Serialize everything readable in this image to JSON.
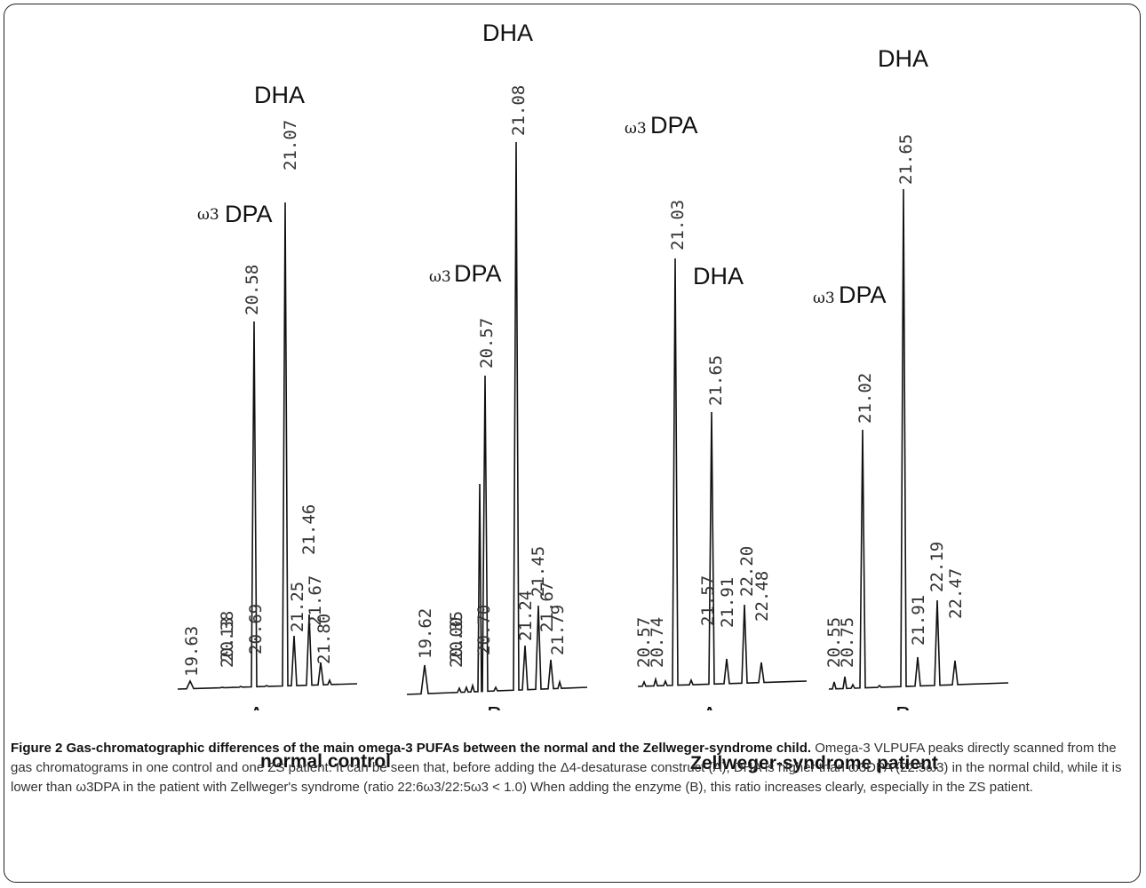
{
  "figure": {
    "panels": [
      {
        "label": "A",
        "peak_labels": [
          "ω3",
          "DPA",
          "DHA"
        ],
        "rt_labels": [
          "19.63",
          "20.13",
          "20.38",
          "20.69",
          "20.58",
          "21.07",
          "21.25",
          "21.46",
          "21.67",
          "21.80"
        ]
      },
      {
        "label": "B",
        "peak_labels": [
          "ω3",
          "DPA",
          "DHA"
        ],
        "rt_labels": [
          "19.62",
          "20.00",
          "20.35",
          "20.70",
          "20.57",
          "21.08",
          "21.24",
          "21.45",
          "21.67",
          "21.79"
        ]
      },
      {
        "label": "A",
        "peak_labels": [
          "ω3",
          "DPA",
          "DHA"
        ],
        "rt_labels": [
          "20.57",
          "20.74",
          "21.03",
          "21.57",
          "21.65",
          "21.91",
          "22.20",
          "22.48"
        ]
      },
      {
        "label": "B",
        "peak_labels": [
          "ω3",
          "DPA",
          "DHA"
        ],
        "rt_labels": [
          "20.55",
          "20.75",
          "21.02",
          "21.65",
          "21.91",
          "22.19",
          "22.47"
        ]
      }
    ],
    "group_labels": [
      "normal control",
      "Zellweger-syndrome patient"
    ]
  },
  "caption": {
    "title": "Figure 2 Gas-chromatographic differences of the main omega-3 PUFAs between the normal and the Zellweger-syndrome child",
    "title_end": ".",
    "body": " Omega-3 VLPUFA peaks directly scanned from the gas chromatograms in one control and one ZS patient. It can be seen that, before adding the Δ4-desaturase construct (A), DHA is higher than ω3DPA (22:5ω3) in the normal child, while it is lower than ω3DPA in the patient with Zellweger's syndrome (ratio 22:6ω3/22:5ω3 < 1.0) When adding the enzyme (B), this ratio increases clearly, especially in the ZS patient."
  }
}
